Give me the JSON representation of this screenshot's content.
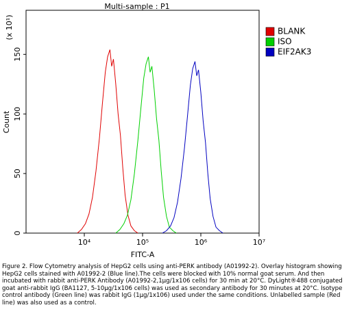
{
  "chart_data": {
    "type": "line",
    "title": "Multi-sample : P1",
    "xlabel": "FITC-A",
    "ylabel": "Count",
    "y_multiplier": "(x 10¹)",
    "xscale": "log",
    "xlim": [
      1000,
      10000000
    ],
    "ylim": [
      0,
      187
    ],
    "xticks": [
      {
        "value": 10000,
        "label": "10⁴"
      },
      {
        "value": 100000,
        "label": "10⁵"
      },
      {
        "value": 1000000,
        "label": "10⁶"
      },
      {
        "value": 10000000,
        "label": "10⁷"
      }
    ],
    "yticks": [
      0,
      50,
      100,
      150
    ],
    "grid": false,
    "legend": "upper right",
    "series": [
      {
        "name": "BLANK",
        "color": "#e00000",
        "x": [
          7586,
          8913,
          10471,
          12023,
          13804,
          15849,
          18197,
          20417,
          22909,
          25119,
          27542,
          29512,
          31623,
          34674,
          38019,
          41687,
          45709,
          50119,
          56234,
          63096,
          72444,
          83176
        ],
        "values": [
          0,
          3,
          8,
          16,
          30,
          52,
          80,
          108,
          135,
          148,
          154,
          140,
          146,
          125,
          100,
          82,
          55,
          32,
          15,
          6,
          2,
          0
        ]
      },
      {
        "name": "ISO",
        "color": "#00d000",
        "x": [
          34675,
          40740,
          47863,
          54954,
          63096,
          72444,
          83176,
          93325,
          104713,
          114815,
          125893,
          134896,
          144544,
          158489,
          173780,
          190546,
          208930,
          229087,
          257040,
          288403,
          331131,
          380189
        ],
        "values": [
          0,
          3,
          8,
          15,
          28,
          50,
          78,
          104,
          130,
          142,
          148,
          135,
          140,
          120,
          96,
          78,
          52,
          30,
          14,
          5,
          2,
          0
        ]
      },
      {
        "name": "EIF2AK3",
        "color": "#0000c0",
        "x": [
          218776,
          257040,
          301995,
          346737,
          398107,
          457088,
          524807,
          588844,
          660693,
          724436,
          794328,
          851138,
          912011,
          1000000,
          1096478,
          1202264,
          1318257,
          1445440,
          1621810,
          1819701,
          2089296,
          2398833
        ],
        "values": [
          0,
          2,
          6,
          13,
          26,
          46,
          72,
          98,
          124,
          138,
          144,
          132,
          137,
          118,
          94,
          76,
          50,
          29,
          14,
          5,
          2,
          0
        ]
      }
    ],
    "caption": "Figure 2. Flow Cytometry analysis of HepG2 cells using anti-PERK antibody (A01992-2).  Overlay histogram showing HepG2 cells stained with A01992-2 (Blue line).The cells were blocked with 10% normal goat serum. And then incubated with rabbit anti-PERK Antibody (A01992-2,1μg/1x106 cells) for 30 min at 20°C. DyLight®488 conjugated goat anti-rabbit IgG (BA1127, 5-10μg/1x106 cells) was used as secondary antibody for 30 minutes at 20°C. Isotype control antibody (Green line) was rabbit IgG (1μg/1x106) used under the same conditions. Unlabelled sample (Red line) was also used as a control."
  }
}
